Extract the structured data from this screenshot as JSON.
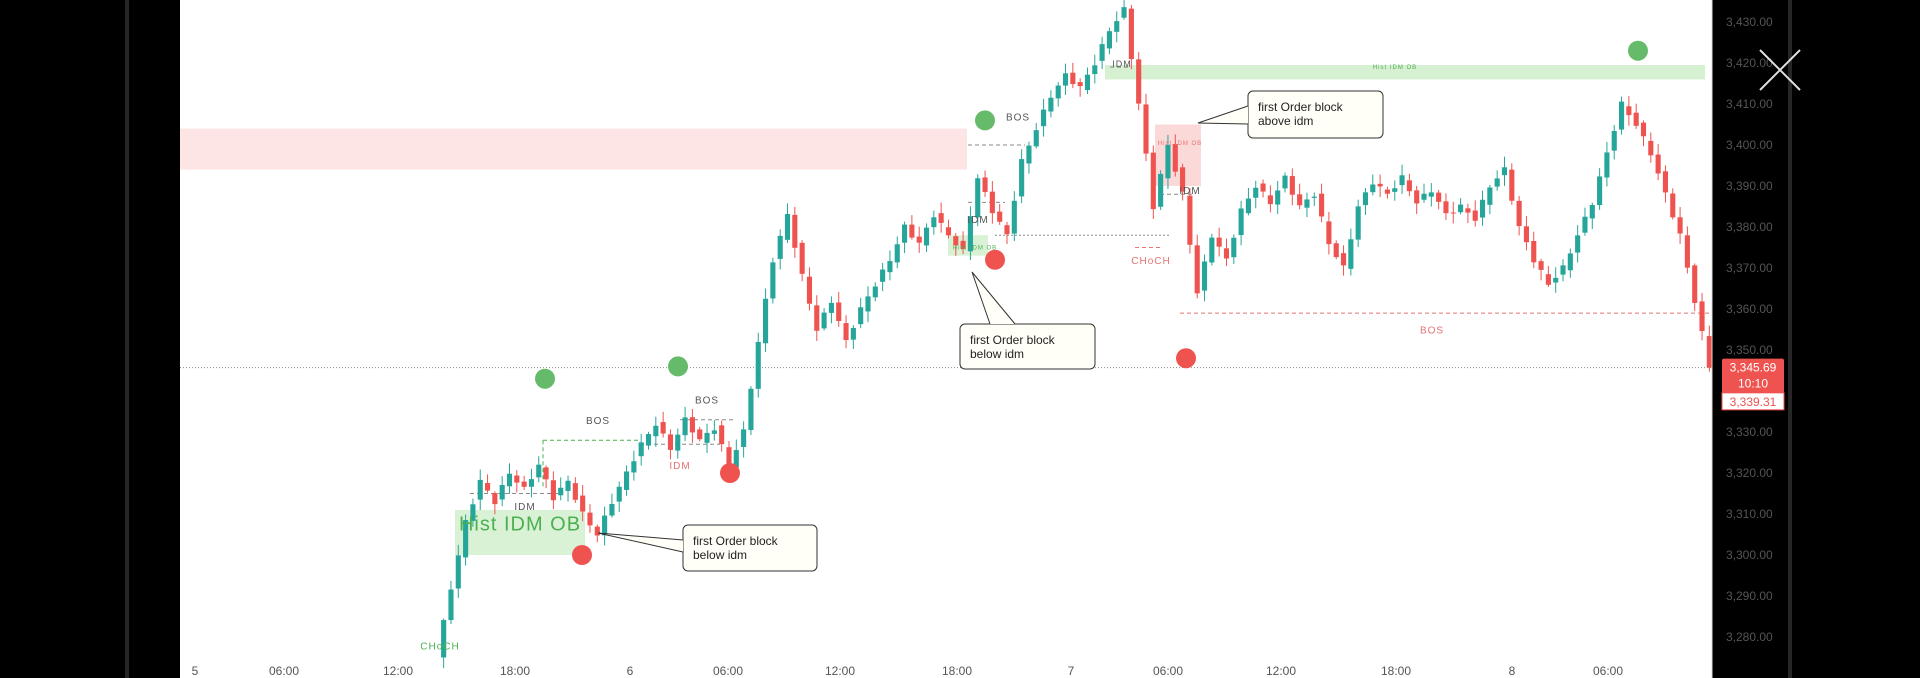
{
  "chart_data": {
    "type": "candlestick",
    "title": "",
    "y_axis": {
      "ticks": [
        "3,430.00",
        "3,420.00",
        "3,410.00",
        "3,400.00",
        "3,390.00",
        "3,380.00",
        "3,370.00",
        "3,360.00",
        "3,350.00",
        "3,340.00",
        "3,330.00",
        "3,320.00",
        "3,310.00",
        "3,300.00",
        "3,290.00",
        "3,280.00"
      ],
      "tick_values": [
        3430,
        3420,
        3410,
        3400,
        3390,
        3380,
        3370,
        3360,
        3350,
        3340,
        3330,
        3320,
        3310,
        3300,
        3290,
        3280
      ],
      "range": [
        3275,
        3433
      ]
    },
    "x_axis": {
      "ticks": [
        "5",
        "06:00",
        "12:00",
        "18:00",
        "6",
        "06:00",
        "12:00",
        "18:00",
        "7",
        "06:00",
        "12:00",
        "18:00",
        "8",
        "06:00"
      ]
    },
    "price_labels": {
      "last": "3,345.69",
      "countdown": "10:10",
      "low": "3,339.31",
      "last_value": 3345.69,
      "low_value": 3339.31
    },
    "series": [
      {
        "ohlc_path": [
          [
            3275,
            3292
          ],
          [
            3292,
            3308
          ],
          [
            3308,
            3318
          ],
          [
            3318,
            3313
          ],
          [
            3313,
            3320
          ],
          [
            3320,
            3316
          ],
          [
            3316,
            3322
          ],
          [
            3322,
            3314
          ],
          [
            3314,
            3318
          ],
          [
            3318,
            3310
          ],
          [
            3310,
            3305
          ],
          [
            3305,
            3313
          ],
          [
            3313,
            3320
          ],
          [
            3320,
            3327
          ],
          [
            3327,
            3332
          ],
          [
            3332,
            3326
          ],
          [
            3326,
            3333
          ],
          [
            3333,
            3328
          ],
          [
            3328,
            3331
          ],
          [
            3331,
            3322
          ],
          [
            3322,
            3330
          ],
          [
            3330,
            3352
          ],
          [
            3352,
            3372
          ],
          [
            3372,
            3383
          ],
          [
            3383,
            3368
          ],
          [
            3368,
            3355
          ],
          [
            3355,
            3362
          ],
          [
            3362,
            3352
          ],
          [
            3352,
            3360
          ],
          [
            3360,
            3366
          ],
          [
            3366,
            3372
          ],
          [
            3372,
            3380
          ],
          [
            3380,
            3376
          ],
          [
            3376,
            3383
          ],
          [
            3383,
            3378
          ],
          [
            3378,
            3374
          ],
          [
            3374,
            3392
          ],
          [
            3392,
            3384
          ],
          [
            3384,
            3378
          ],
          [
            3378,
            3396
          ],
          [
            3396,
            3404
          ],
          [
            3404,
            3412
          ],
          [
            3412,
            3417
          ],
          [
            3417,
            3414
          ],
          [
            3414,
            3420
          ],
          [
            3420,
            3428
          ],
          [
            3428,
            3433
          ],
          [
            3433,
            3410
          ],
          [
            3410,
            3385
          ],
          [
            3385,
            3400
          ],
          [
            3400,
            3388
          ],
          [
            3388,
            3364
          ],
          [
            3364,
            3378
          ],
          [
            3378,
            3372
          ],
          [
            3372,
            3384
          ],
          [
            3384,
            3390
          ],
          [
            3390,
            3386
          ],
          [
            3386,
            3392
          ],
          [
            3392,
            3385
          ],
          [
            3385,
            3388
          ],
          [
            3388,
            3376
          ],
          [
            3376,
            3370
          ],
          [
            3370,
            3385
          ],
          [
            3385,
            3391
          ],
          [
            3391,
            3388
          ],
          [
            3388,
            3392
          ],
          [
            3392,
            3386
          ],
          [
            3386,
            3389
          ],
          [
            3389,
            3383
          ],
          [
            3383,
            3385
          ],
          [
            3385,
            3382
          ],
          [
            3382,
            3390
          ],
          [
            3390,
            3394
          ],
          [
            3394,
            3380
          ],
          [
            3380,
            3372
          ],
          [
            3372,
            3366
          ],
          [
            3366,
            3370
          ],
          [
            3370,
            3378
          ],
          [
            3378,
            3386
          ],
          [
            3386,
            3398
          ],
          [
            3398,
            3410
          ],
          [
            3410,
            3405
          ],
          [
            3405,
            3398
          ],
          [
            3398,
            3388
          ],
          [
            3388,
            3378
          ],
          [
            3378,
            3362
          ],
          [
            3362,
            3346
          ]
        ]
      }
    ],
    "annotations": {
      "labels": [
        "CHoCH",
        "Hist IDM OB",
        "IDM",
        "BOS",
        "BOS",
        "IDM",
        "BOS",
        "Hist IDM OB",
        "IDM",
        "BOS",
        "IDM",
        "Hist IDM OB",
        "Hist IDM OB",
        "CHoCH",
        "IDM",
        "BOS"
      ],
      "callouts": [
        {
          "line1": "first Order block",
          "line2": "below idm"
        },
        {
          "line1": "first Order block",
          "line2": "below idm"
        },
        {
          "line1": "first Order block",
          "line2": "above idm"
        }
      ],
      "swing_high_levels": [
        3333,
        3336,
        3403,
        3420
      ],
      "swing_low_levels": [
        3301,
        3321,
        3373,
        3350
      ]
    }
  }
}
